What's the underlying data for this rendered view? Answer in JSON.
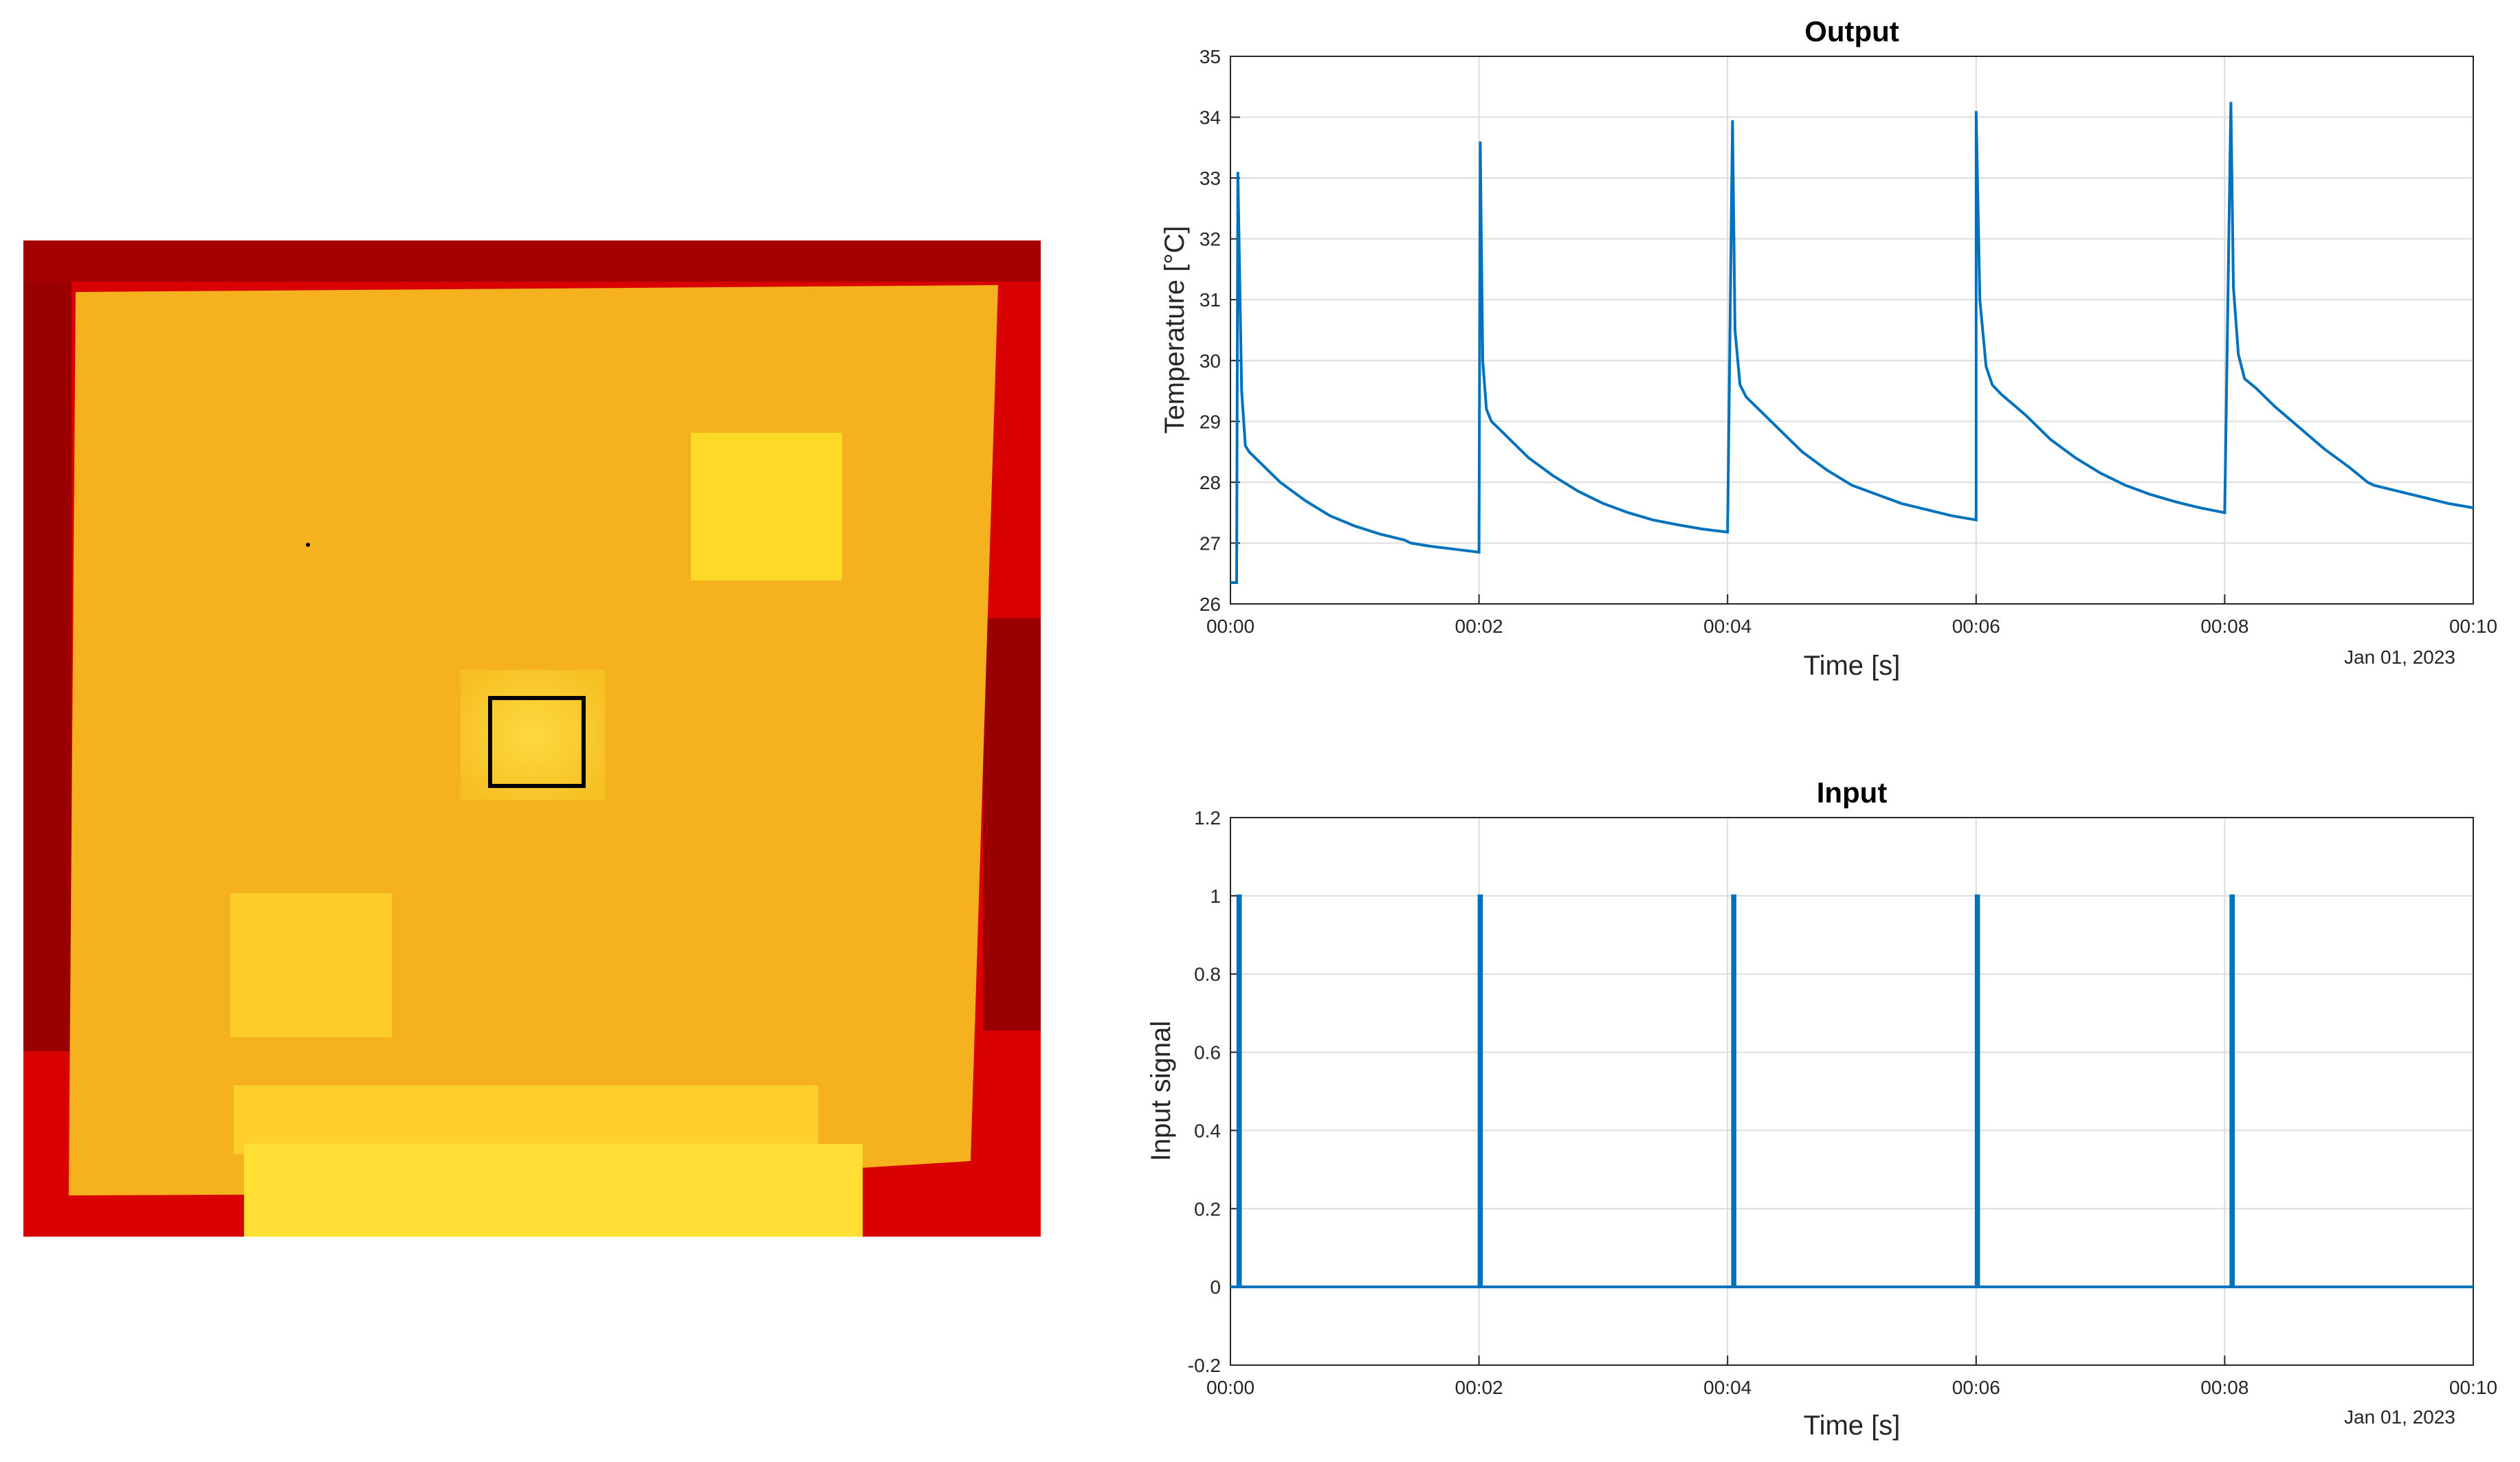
{
  "colors": {
    "series": "#0072BD",
    "grid": "#dcdcdc",
    "frame": "#262626",
    "thermal_border": "#c40000",
    "thermal_plate": "#f5b21e",
    "thermal_hot": "#ffe02a",
    "roi_box": "#000000"
  },
  "chart_data": [
    {
      "type": "line",
      "title": "Output",
      "xlabel": "Time [s]",
      "ylabel": "Temperature [°C]",
      "date_label": "Jan 01, 2023",
      "grid": true,
      "xlim": [
        "00:00",
        "00:10"
      ],
      "ylim": [
        26,
        35
      ],
      "x_ticks": [
        "00:00",
        "00:02",
        "00:04",
        "00:06",
        "00:08",
        "00:10"
      ],
      "y_ticks": [
        "26",
        "27",
        "28",
        "29",
        "30",
        "31",
        "32",
        "33",
        "34",
        "35"
      ],
      "series": [
        {
          "x": [
            "00:00.00",
            "00:00.05",
            "00:00.06",
            "00:00.09",
            "00:00.12",
            "00:00.15",
            "00:00.25",
            "00:00.4",
            "00:00.6",
            "00:00.8",
            "00:01.0",
            "00:01.2",
            "00:01.4",
            "00:01.45",
            "00:01.6",
            "00:01.8",
            "00:02.0",
            "00:02.01",
            "00:02.03",
            "00:02.06",
            "00:02.1",
            "00:02.2",
            "00:02.4",
            "00:02.6",
            "00:02.8",
            "00:03.0",
            "00:03.2",
            "00:03.4",
            "00:03.6",
            "00:03.8",
            "00:04.0",
            "00:04.04",
            "00:04.06",
            "00:04.1",
            "00:04.15",
            "00:04.25",
            "00:04.4",
            "00:04.6",
            "00:04.8",
            "00:05.0",
            "00:05.2",
            "00:05.4",
            "00:05.6",
            "00:05.8",
            "00:06.0",
            "00:06.0",
            "00:06.03",
            "00:06.08",
            "00:06.13",
            "00:06.2",
            "00:06.4",
            "00:06.6",
            "00:06.8",
            "00:07.0",
            "00:07.2",
            "00:07.4",
            "00:07.6",
            "00:07.8",
            "00:08.0",
            "00:08.05",
            "00:08.07",
            "00:08.11",
            "00:08.16",
            "00:08.25",
            "00:08.4",
            "00:08.6",
            "00:08.8",
            "00:09.0",
            "00:09.15",
            "00:09.2",
            "00:09.4",
            "00:09.6",
            "00:09.8",
            "00:10.0"
          ],
          "y": [
            26.35,
            26.35,
            33.1,
            29.5,
            28.6,
            28.5,
            28.3,
            28.0,
            27.7,
            27.45,
            27.28,
            27.15,
            27.05,
            27.0,
            26.95,
            26.9,
            26.85,
            33.6,
            30.0,
            29.2,
            29.0,
            28.8,
            28.4,
            28.1,
            27.85,
            27.65,
            27.5,
            27.38,
            27.3,
            27.23,
            27.18,
            33.95,
            30.5,
            29.6,
            29.4,
            29.2,
            28.9,
            28.5,
            28.2,
            27.95,
            27.8,
            27.65,
            27.55,
            27.45,
            27.38,
            34.1,
            31.0,
            29.9,
            29.6,
            29.45,
            29.1,
            28.7,
            28.4,
            28.15,
            27.95,
            27.8,
            27.68,
            27.58,
            27.5,
            34.25,
            31.2,
            30.1,
            29.7,
            29.55,
            29.25,
            28.9,
            28.55,
            28.25,
            28.0,
            27.95,
            27.85,
            27.75,
            27.65,
            27.58
          ]
        }
      ]
    },
    {
      "type": "line",
      "title": "Input",
      "xlabel": "Time [s]",
      "ylabel": "Input signal",
      "date_label": "Jan 01, 2023",
      "grid": true,
      "xlim": [
        "00:00",
        "00:10"
      ],
      "ylim": [
        -0.2,
        1.2
      ],
      "x_ticks": [
        "00:00",
        "00:02",
        "00:04",
        "00:06",
        "00:08",
        "00:10"
      ],
      "y_ticks": [
        "-0.2",
        "0",
        "0.2",
        "0.4",
        "0.6",
        "0.8",
        "1",
        "1.2"
      ],
      "series": [
        {
          "x": [
            "00:00.00",
            "00:00.06",
            "00:00.06",
            "00:00.08",
            "00:00.08",
            "00:02.0",
            "00:02.0",
            "00:02.02",
            "00:02.02",
            "00:04.04",
            "00:04.04",
            "00:04.06",
            "00:04.06",
            "00:06.0",
            "00:06.0",
            "00:06.02",
            "00:06.02",
            "00:08.05",
            "00:08.05",
            "00:08.07",
            "00:08.07",
            "00:10.0"
          ],
          "y": [
            0,
            0,
            1,
            1,
            0,
            0,
            1,
            1,
            0,
            0,
            1,
            1,
            0,
            0,
            1,
            1,
            0,
            0,
            1,
            1,
            0,
            0
          ]
        }
      ]
    }
  ]
}
